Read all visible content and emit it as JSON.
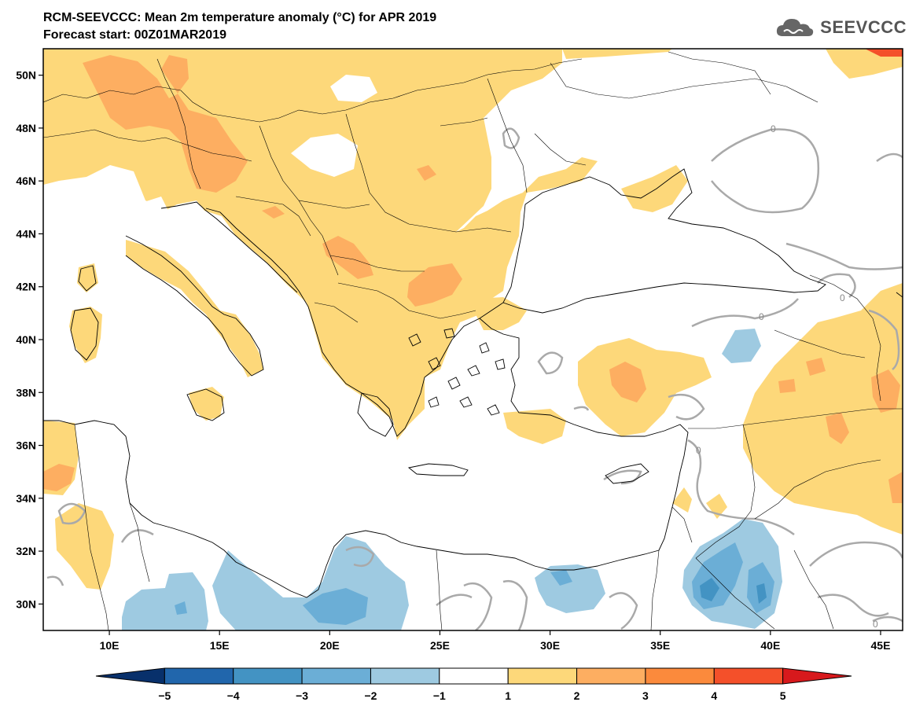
{
  "title_line1": "RCM-SEEVCCC: Mean 2m temperature anomaly (°C) for APR 2019",
  "title_line2": "Forecast start: 00Z01MAR2019",
  "logo": {
    "text": "SEEVCCC",
    "icon": "cloud-icon"
  },
  "map": {
    "lon_range": [
      7,
      46
    ],
    "lat_range": [
      29,
      51
    ],
    "lat_ticks": [
      "50N",
      "48N",
      "46N",
      "44N",
      "42N",
      "40N",
      "38N",
      "36N",
      "34N",
      "32N",
      "30N"
    ],
    "lat_values": [
      50,
      48,
      46,
      44,
      42,
      40,
      38,
      36,
      34,
      32,
      30
    ],
    "lon_ticks": [
      "10E",
      "15E",
      "20E",
      "25E",
      "30E",
      "35E",
      "40E",
      "45E"
    ],
    "lon_values": [
      10,
      15,
      20,
      25,
      30,
      35,
      40,
      45
    ],
    "contour_label": "0"
  },
  "colorbar": {
    "ticks": [
      "−5",
      "−4",
      "−3",
      "−2",
      "−1",
      "1",
      "2",
      "3",
      "4",
      "5"
    ],
    "colors": [
      "#08306b",
      "#2166ac",
      "#4393c3",
      "#6baed6",
      "#9ecae1",
      "#ffffff",
      "#fdd87a",
      "#fdae61",
      "#fb8a3c",
      "#f4502a",
      "#d7191c"
    ]
  }
}
